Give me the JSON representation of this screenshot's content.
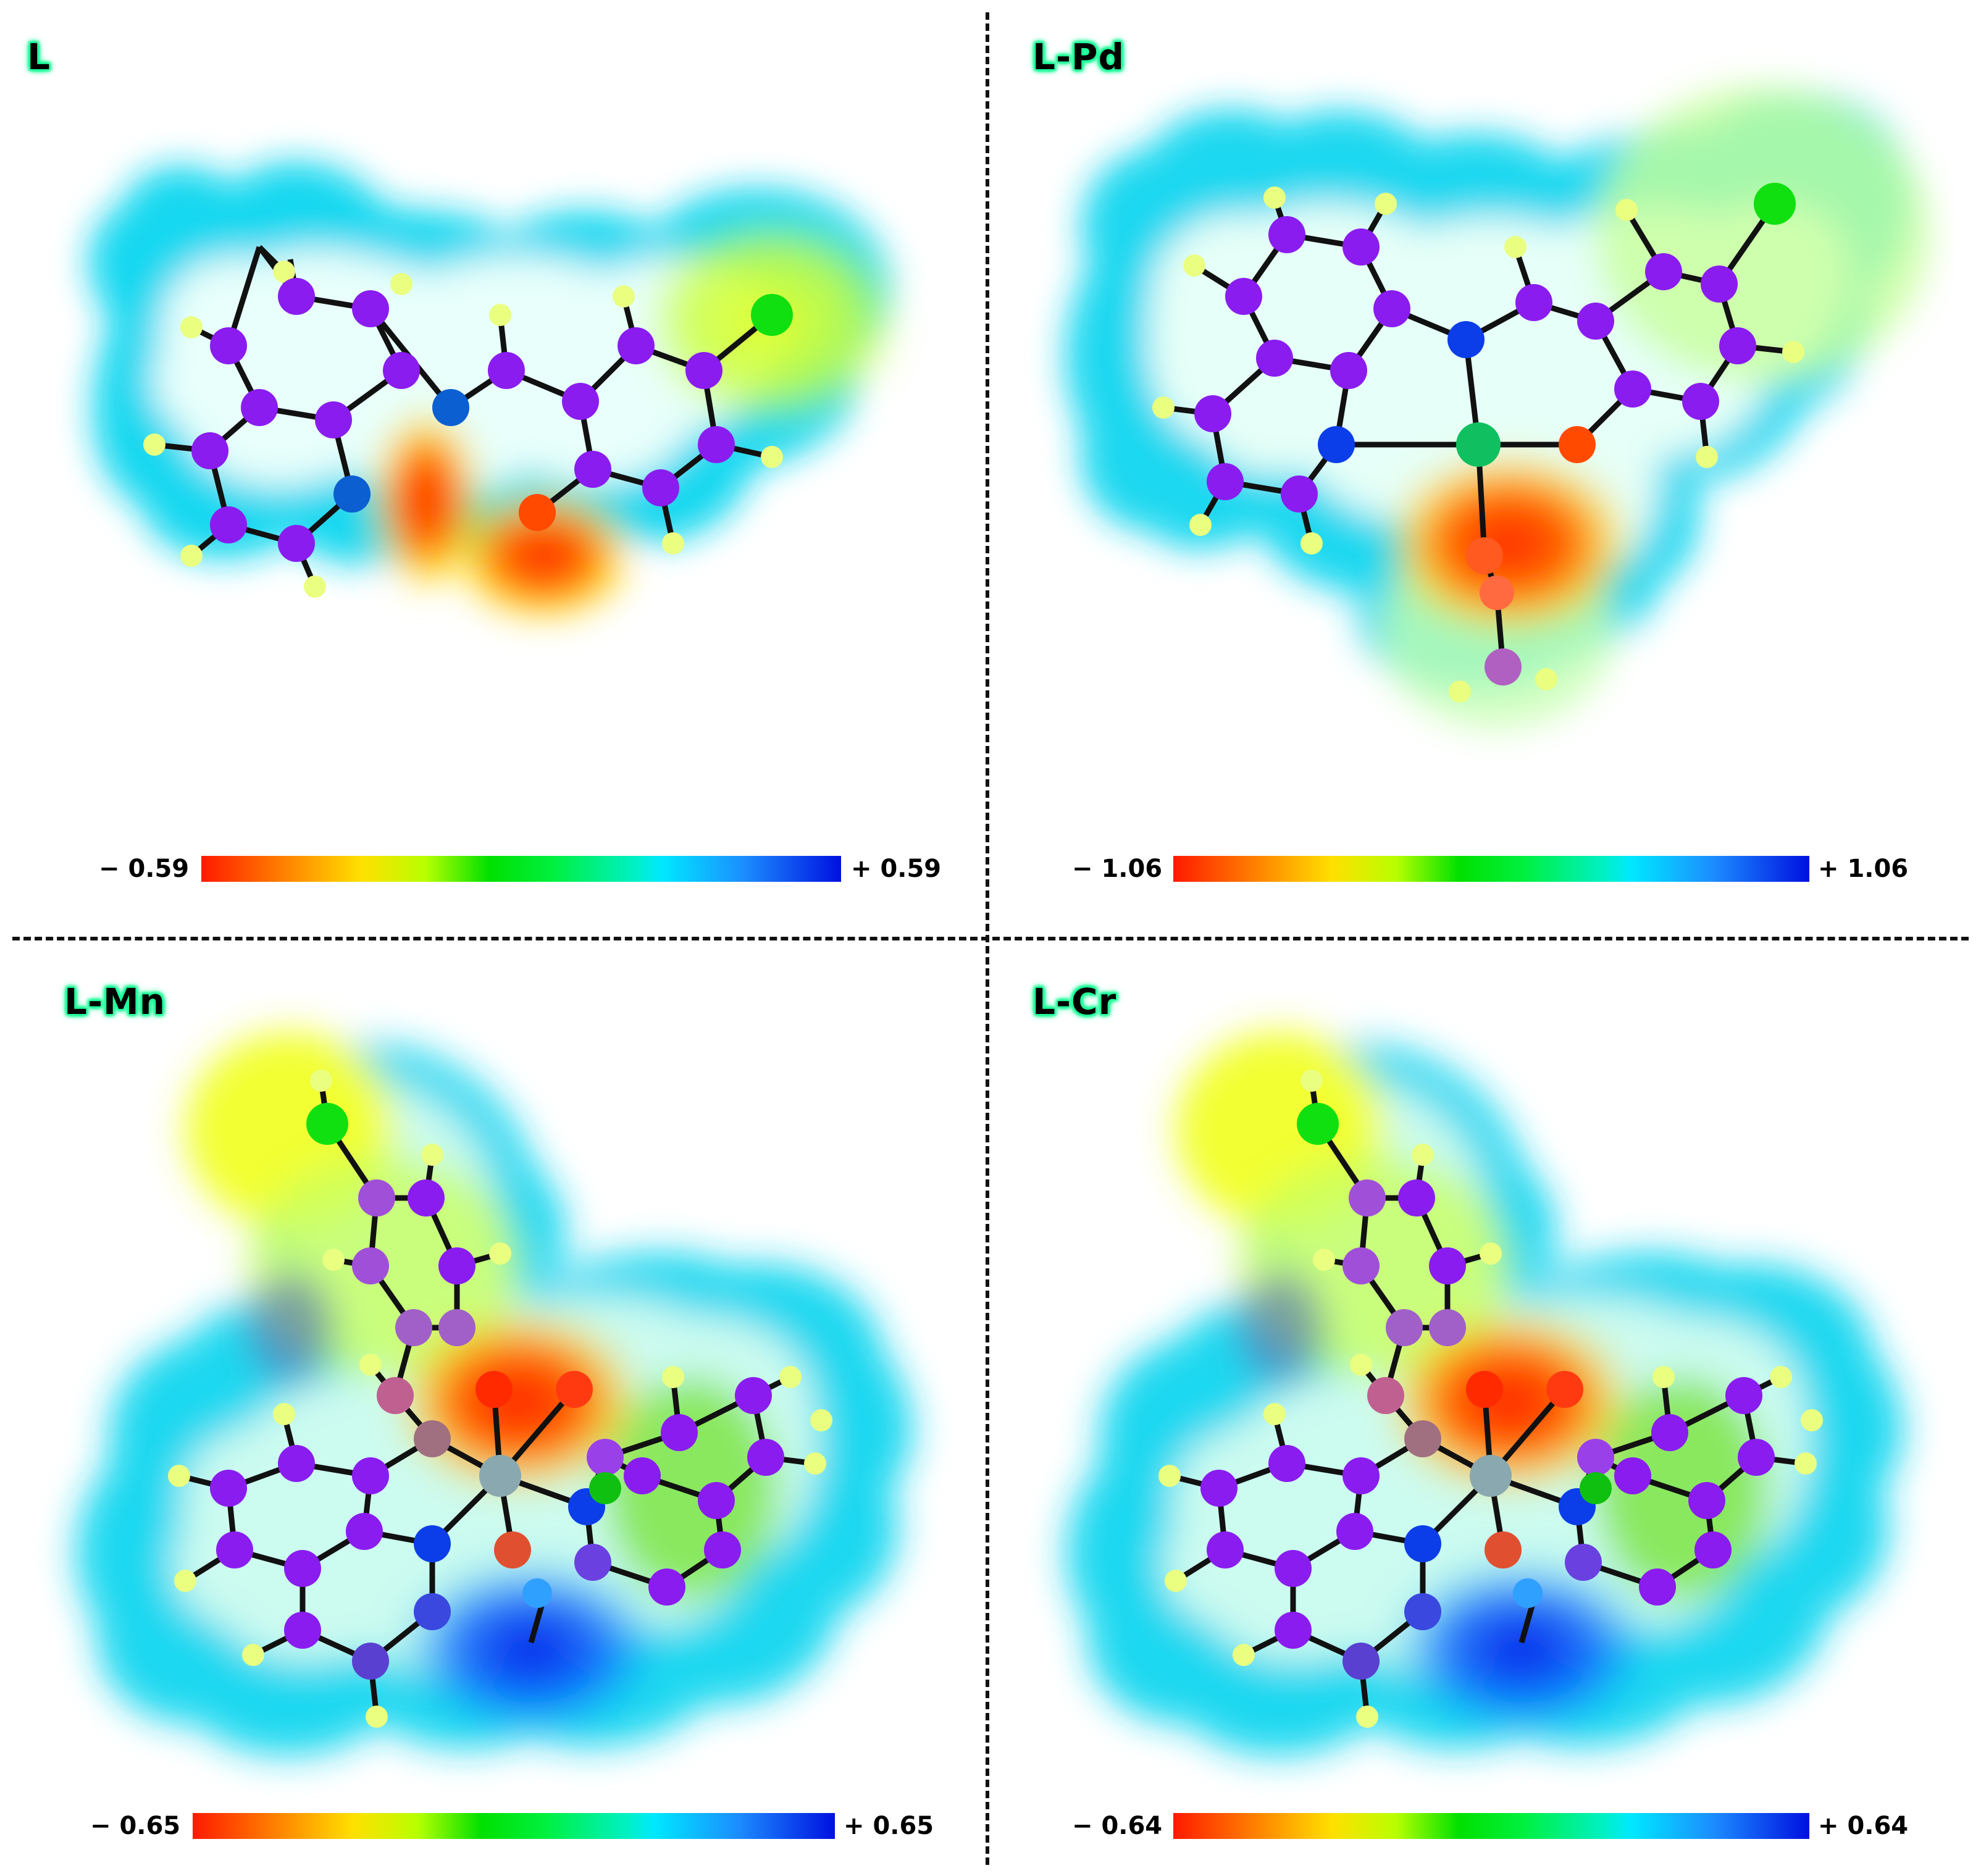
{
  "panels": [
    {
      "label": "L",
      "scale_min": "− 0.59",
      "scale_max": "+ 0.59"
    },
    {
      "label": "L-Pd",
      "scale_min": "− 1.06",
      "scale_max": "+ 1.06"
    },
    {
      "label": "L-Mn",
      "scale_min": "− 0.65",
      "scale_max": "+ 0.65"
    },
    {
      "label": "L-Cr",
      "scale_min": "− 0.64",
      "scale_max": "+ 0.64"
    }
  ],
  "colors": {
    "carbon": "#8a1cf0",
    "nitrogen": "#0b3ee8",
    "oxygen": "#ff4a00",
    "chlorine": "#10e010",
    "hydrogen": "#e8ff80",
    "bond": "#111111"
  }
}
